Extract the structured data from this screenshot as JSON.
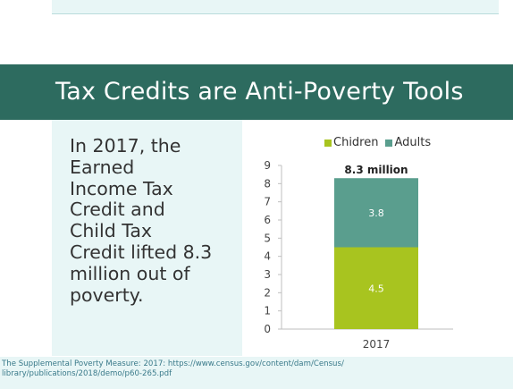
{
  "slide": {
    "title": "Tax Credits are Anti-Poverty Tools",
    "body_lines": [
      "In 2017, the",
      "Earned",
      "Income Tax",
      "Credit and",
      "Child Tax",
      "Credit lifted 8.3",
      "million out of",
      "poverty."
    ],
    "source_lines": [
      "The Supplemental Poverty Measure: 2017: https://www.census.gov/content/dam/Census/",
      "library/publications/2018/demo/p60-265.pdf"
    ]
  },
  "colors": {
    "banner": "#2d6b5f",
    "panel": "#e8f6f6",
    "children": "#a8c41f",
    "adults": "#5a9e8e"
  },
  "chart_data": {
    "type": "bar",
    "stacked": true,
    "categories": [
      "2017"
    ],
    "series": [
      {
        "name": "Chidren",
        "values": [
          4.5
        ],
        "color": "#a8c41f"
      },
      {
        "name": "Adults",
        "values": [
          3.8
        ],
        "color": "#5a9e8e"
      }
    ],
    "total_label": "8.3 million",
    "ylim": [
      0,
      9
    ],
    "yticks": [
      0,
      1,
      2,
      3,
      4,
      5,
      6,
      7,
      8,
      9
    ],
    "legend_position": "top",
    "grid": false
  }
}
